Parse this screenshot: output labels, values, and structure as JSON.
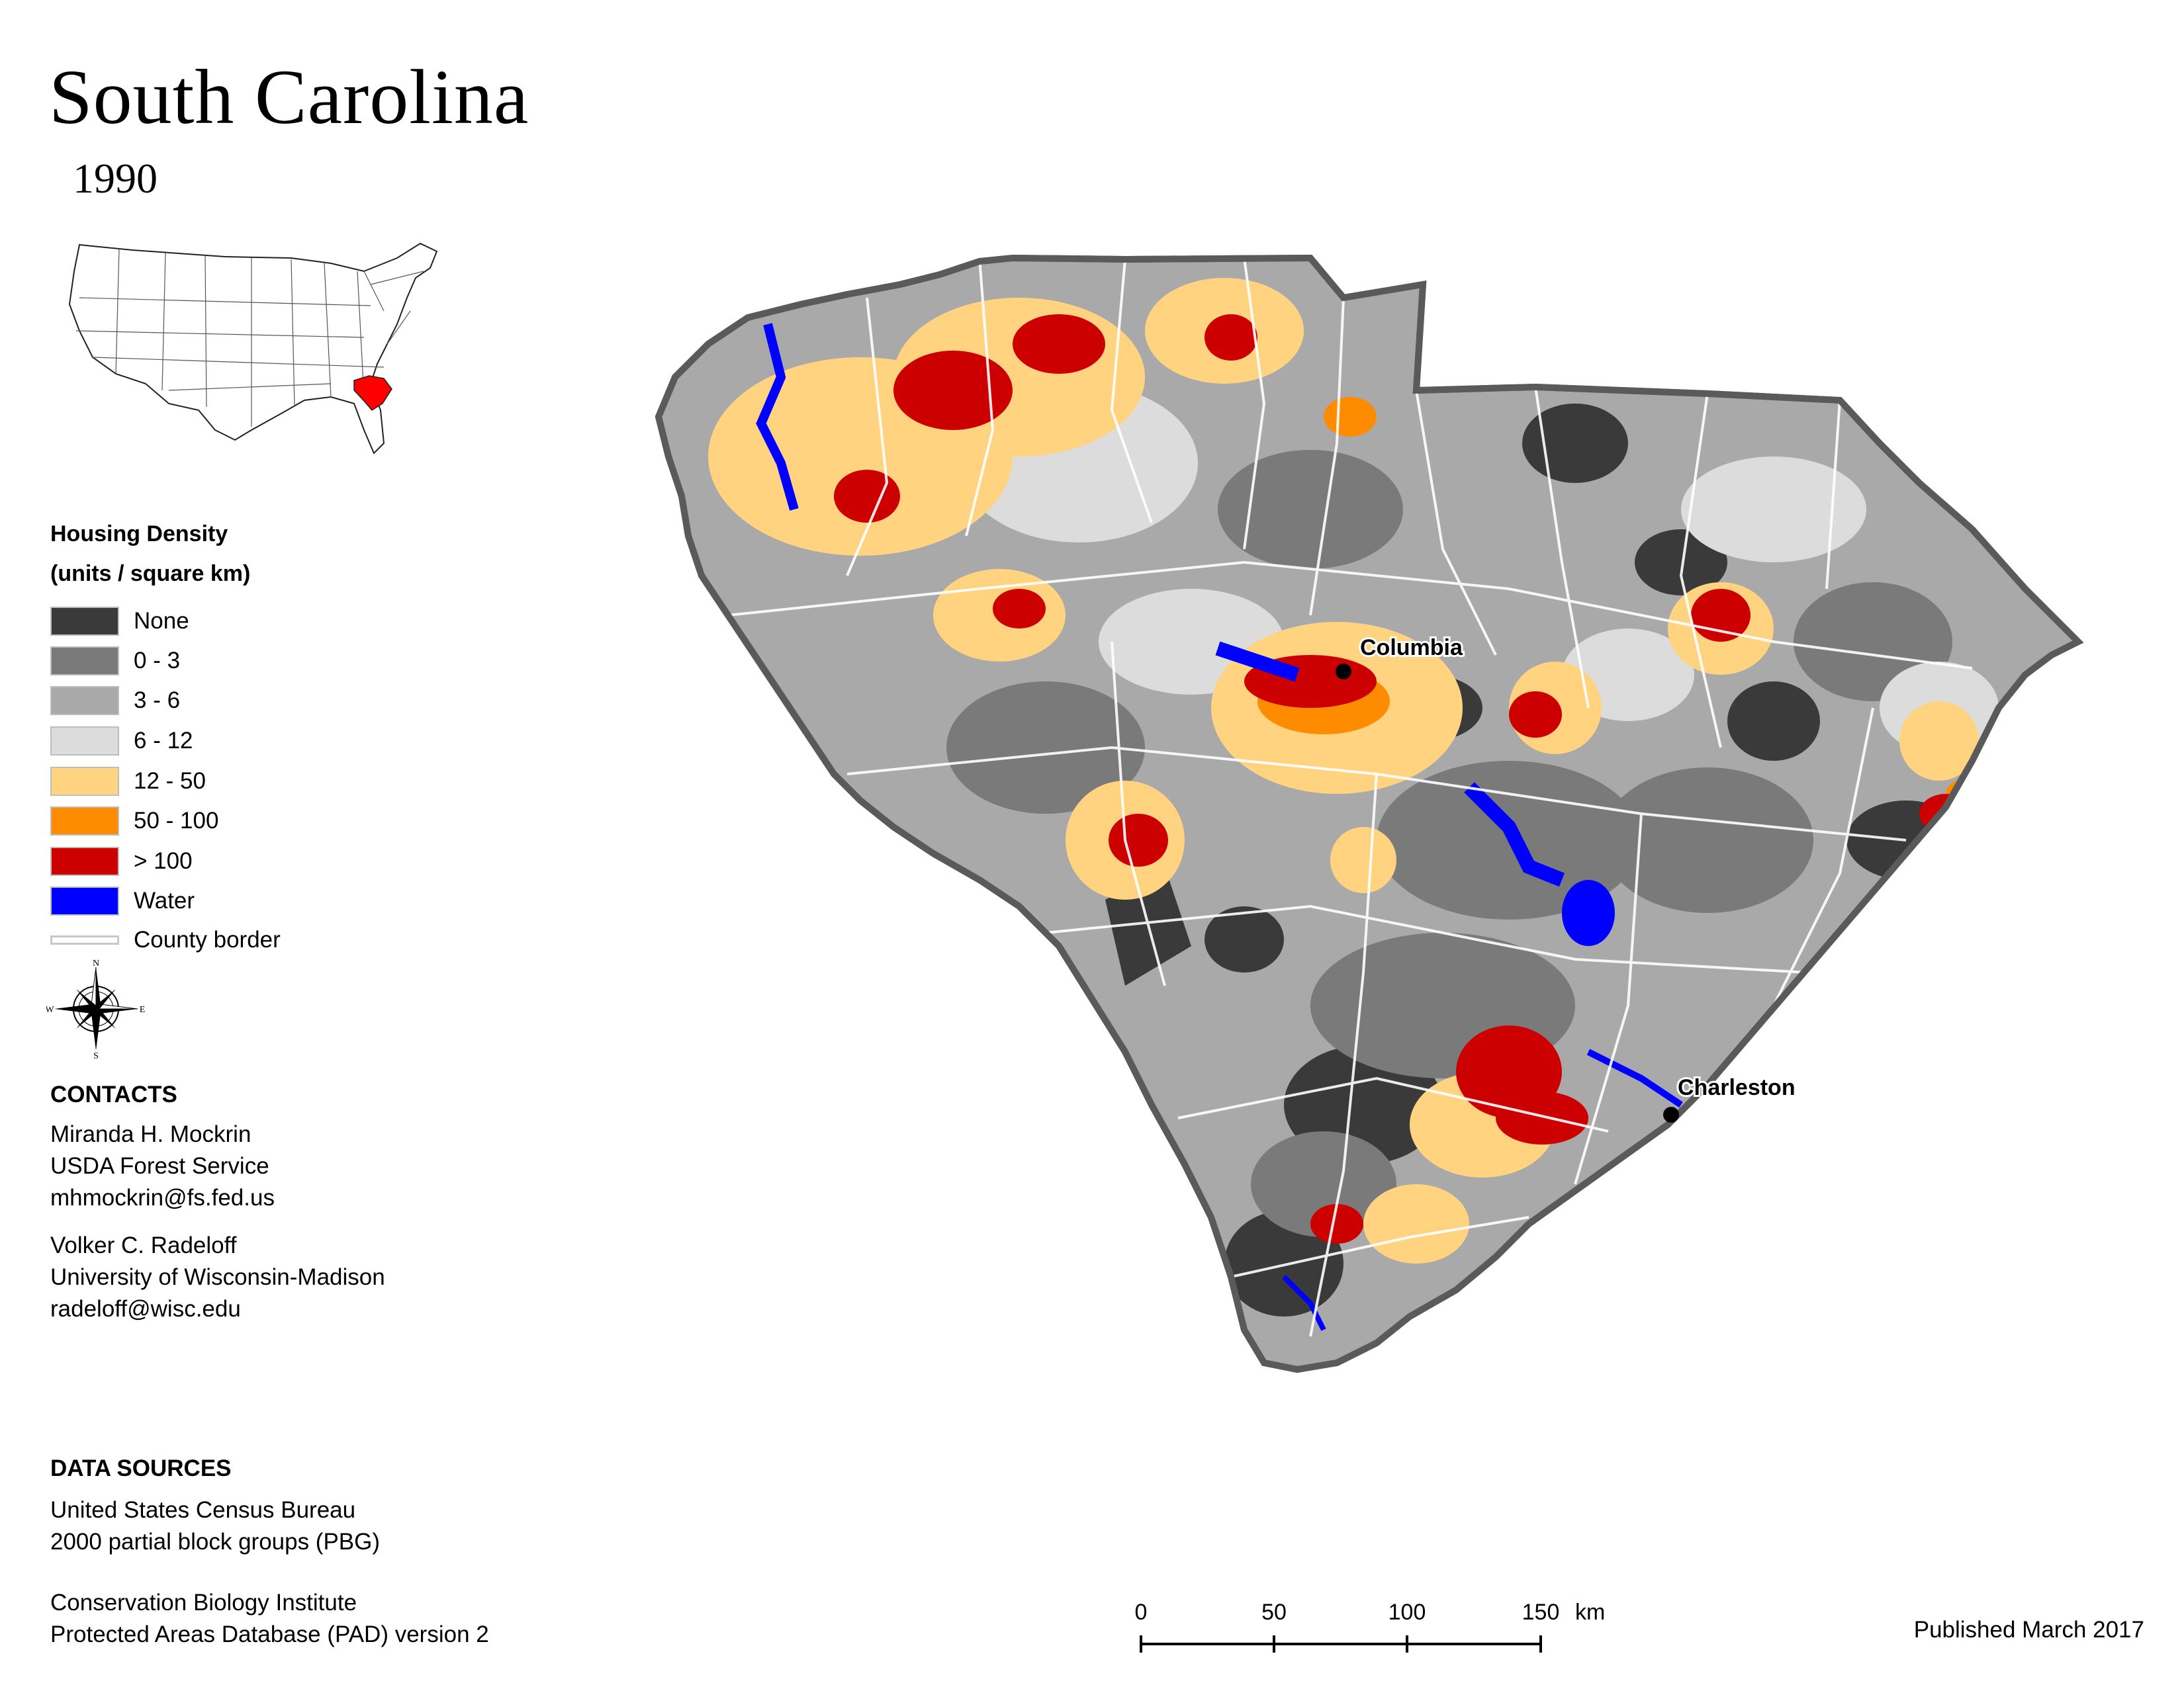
{
  "title": "South Carolina",
  "year": "1990",
  "inset_map": {
    "highlight_color": "#ff0000",
    "state": "South Carolina"
  },
  "legend": {
    "title_line1": "Housing Density",
    "title_line2": "(units / square km)",
    "items": [
      {
        "label": "None",
        "color": "#3a3a3a"
      },
      {
        "label": "0 - 3",
        "color": "#7a7a7a"
      },
      {
        "label": "3 - 6",
        "color": "#a9a9a9"
      },
      {
        "label": "6 - 12",
        "color": "#dcdcdc"
      },
      {
        "label": "12 - 50",
        "color": "#ffd380"
      },
      {
        "label": "50 - 100",
        "color": "#ff8c00"
      },
      {
        "label": "> 100",
        "color": "#cc0000"
      },
      {
        "label": "Water",
        "color": "#0000ff"
      }
    ],
    "county_border_label": "County border"
  },
  "compass": {
    "n": "N",
    "s": "S",
    "e": "E",
    "w": "W"
  },
  "contacts": {
    "heading": "CONTACTS",
    "person1": [
      "Miranda H. Mockrin",
      "USDA Forest Service",
      "mhmockrin@fs.fed.us"
    ],
    "person2": [
      "Volker C. Radeloff",
      "University of Wisconsin-Madison",
      "radeloff@wisc.edu"
    ]
  },
  "data_sources": {
    "heading": "DATA SOURCES",
    "source1": [
      "United States Census Bureau",
      "2000 partial block groups (PBG)"
    ],
    "source2": [
      "Conservation Biology Institute",
      "Protected Areas Database (PAD) version 2"
    ]
  },
  "cities": [
    {
      "name": "Columbia"
    },
    {
      "name": "Charleston"
    }
  ],
  "scale_bar": {
    "ticks": [
      "0",
      "50",
      "100",
      "150"
    ],
    "unit": "km"
  },
  "published": "Published March 2017"
}
